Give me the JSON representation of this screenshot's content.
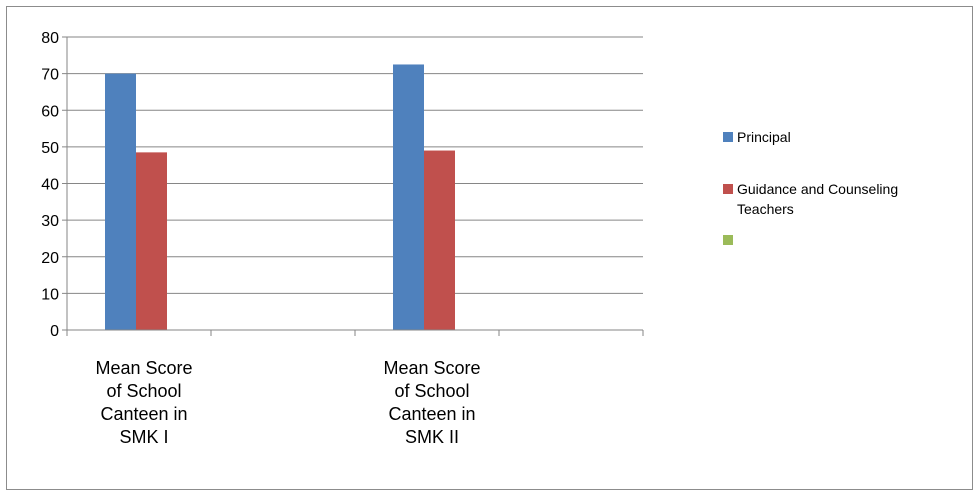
{
  "chart_data": {
    "type": "bar",
    "categories": [
      "Mean Score of School Canteen in SMK I",
      "Mean Score of School Canteen in SMK II"
    ],
    "category_label_lines": [
      [
        "Mean Score",
        "of School",
        "Canteen in",
        "SMK I"
      ],
      [
        "Mean Score",
        "of School",
        "Canteen in",
        "SMK II"
      ]
    ],
    "series": [
      {
        "name": "Principal",
        "values": [
          70,
          72.5
        ],
        "color": "#4f81bd"
      },
      {
        "name": "Guidance and Counseling Teachers",
        "values": [
          48.5,
          49
        ],
        "color": "#c0504d"
      },
      {
        "name": "",
        "values": [
          0,
          0
        ],
        "color": "#9bbb59"
      }
    ],
    "legend_label_lines": [
      [
        "Principal"
      ],
      [
        "Guidance and Counseling",
        "Teachers"
      ],
      [
        ""
      ]
    ],
    "ylim": [
      0,
      80
    ],
    "y_ticks": [
      "0",
      "10",
      "20",
      "30",
      "40",
      "50",
      "60",
      "70",
      "80"
    ],
    "grid": true,
    "legend_position": "right",
    "colors": {
      "axis": "#868686",
      "grid": "#868686",
      "frame": "#8c8c8c"
    }
  }
}
